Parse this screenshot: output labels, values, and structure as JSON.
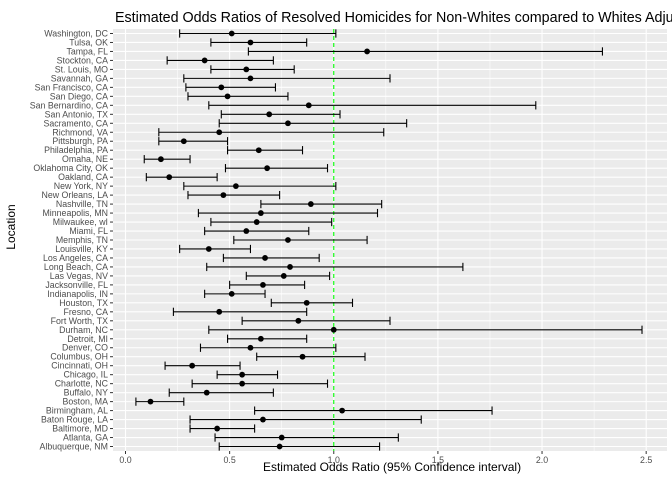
{
  "chart_data": {
    "type": "scatter",
    "title": "Estimated Odds Ratios of Resolved Homicides for Non-Whites compared to Whites Adjusted by Victim Age & Sex",
    "xlabel": "Estimated Odds Ratio (95% Confidence interval)",
    "ylabel": "Location",
    "xlim": [
      -0.06,
      2.6
    ],
    "xticks": [
      "0.0",
      "0.5",
      "1.0",
      "1.5",
      "2.0",
      "2.5"
    ],
    "reference_line": {
      "x": 1.0,
      "color": "#00ff00",
      "style": "dashed"
    },
    "grid": true,
    "legend": "none",
    "colors": {
      "panel": "#ebebeb",
      "grid": "#ffffff",
      "point": "#000000",
      "axis_text": "#4d4d4d"
    },
    "points": [
      {
        "location": "Washington, DC",
        "or": 0.51,
        "lo": 0.26,
        "hi": 1.01
      },
      {
        "location": "Tulsa, OK",
        "or": 0.6,
        "lo": 0.41,
        "hi": 0.87
      },
      {
        "location": "Tampa, FL",
        "or": 1.16,
        "lo": 0.59,
        "hi": 2.29
      },
      {
        "location": "Stockton, CA",
        "or": 0.38,
        "lo": 0.2,
        "hi": 0.71
      },
      {
        "location": "St. Louis, MO",
        "or": 0.58,
        "lo": 0.41,
        "hi": 0.81
      },
      {
        "location": "Savannah, GA",
        "or": 0.6,
        "lo": 0.28,
        "hi": 1.27
      },
      {
        "location": "San Francisco, CA",
        "or": 0.46,
        "lo": 0.29,
        "hi": 0.72
      },
      {
        "location": "San Diego, CA",
        "or": 0.49,
        "lo": 0.3,
        "hi": 0.78
      },
      {
        "location": "San Bernardino, CA",
        "or": 0.88,
        "lo": 0.4,
        "hi": 1.97
      },
      {
        "location": "San Antonio, TX",
        "or": 0.69,
        "lo": 0.46,
        "hi": 1.03
      },
      {
        "location": "Sacramento, CA",
        "or": 0.78,
        "lo": 0.45,
        "hi": 1.35
      },
      {
        "location": "Richmond, VA",
        "or": 0.45,
        "lo": 0.16,
        "hi": 1.24
      },
      {
        "location": "Pittsburgh, PA",
        "or": 0.28,
        "lo": 0.16,
        "hi": 0.49
      },
      {
        "location": "Philadelphia, PA",
        "or": 0.64,
        "lo": 0.49,
        "hi": 0.85
      },
      {
        "location": "Omaha, NE",
        "or": 0.17,
        "lo": 0.09,
        "hi": 0.31
      },
      {
        "location": "Oklahoma City, OK",
        "or": 0.68,
        "lo": 0.48,
        "hi": 0.97
      },
      {
        "location": "Oakland, CA",
        "or": 0.21,
        "lo": 0.1,
        "hi": 0.44
      },
      {
        "location": "New York, NY",
        "or": 0.53,
        "lo": 0.28,
        "hi": 1.01
      },
      {
        "location": "New Orleans, LA",
        "or": 0.47,
        "lo": 0.3,
        "hi": 0.74
      },
      {
        "location": "Nashville, TN",
        "or": 0.89,
        "lo": 0.65,
        "hi": 1.23
      },
      {
        "location": "Minneapolis, MN",
        "or": 0.65,
        "lo": 0.35,
        "hi": 1.21
      },
      {
        "location": "Milwaukee, wI",
        "or": 0.63,
        "lo": 0.41,
        "hi": 0.99
      },
      {
        "location": "Miami, FL",
        "or": 0.58,
        "lo": 0.38,
        "hi": 0.88
      },
      {
        "location": "Memphis, TN",
        "or": 0.78,
        "lo": 0.52,
        "hi": 1.16
      },
      {
        "location": "Louisville, KY",
        "or": 0.4,
        "lo": 0.26,
        "hi": 0.6
      },
      {
        "location": "Los Angeles, CA",
        "or": 0.67,
        "lo": 0.47,
        "hi": 0.93
      },
      {
        "location": "Long Beach, CA",
        "or": 0.79,
        "lo": 0.39,
        "hi": 1.62
      },
      {
        "location": "Las Vegas, NV",
        "or": 0.76,
        "lo": 0.58,
        "hi": 0.98
      },
      {
        "location": "Jacksonville, FL",
        "or": 0.66,
        "lo": 0.5,
        "hi": 0.86
      },
      {
        "location": "Indianapolis, IN",
        "or": 0.51,
        "lo": 0.38,
        "hi": 0.67
      },
      {
        "location": "Houston, TX",
        "or": 0.87,
        "lo": 0.7,
        "hi": 1.09
      },
      {
        "location": "Fresno, CA",
        "or": 0.45,
        "lo": 0.23,
        "hi": 0.87
      },
      {
        "location": "Fort Worth, TX",
        "or": 0.83,
        "lo": 0.56,
        "hi": 1.27
      },
      {
        "location": "Durham, NC",
        "or": 1.0,
        "lo": 0.4,
        "hi": 2.48
      },
      {
        "location": "Detroit, MI",
        "or": 0.65,
        "lo": 0.49,
        "hi": 0.87
      },
      {
        "location": "Denver, CO",
        "or": 0.6,
        "lo": 0.36,
        "hi": 1.01
      },
      {
        "location": "Columbus, OH",
        "or": 0.85,
        "lo": 0.63,
        "hi": 1.15
      },
      {
        "location": "Cincinnati, OH",
        "or": 0.32,
        "lo": 0.19,
        "hi": 0.55
      },
      {
        "location": "Chicago, IL",
        "or": 0.56,
        "lo": 0.44,
        "hi": 0.73
      },
      {
        "location": "Charlotte, NC",
        "or": 0.56,
        "lo": 0.32,
        "hi": 0.97
      },
      {
        "location": "Buffalo, NY",
        "or": 0.39,
        "lo": 0.21,
        "hi": 0.71
      },
      {
        "location": "Boston, MA",
        "or": 0.12,
        "lo": 0.05,
        "hi": 0.28
      },
      {
        "location": "Birmingham, AL",
        "or": 1.04,
        "lo": 0.62,
        "hi": 1.76
      },
      {
        "location": "Baton Rouge, LA",
        "or": 0.66,
        "lo": 0.31,
        "hi": 1.42
      },
      {
        "location": "Baltimore, MD",
        "or": 0.44,
        "lo": 0.31,
        "hi": 0.62
      },
      {
        "location": "Atlanta, GA",
        "or": 0.75,
        "lo": 0.43,
        "hi": 1.31
      },
      {
        "location": "Albuquerque, NM",
        "or": 0.74,
        "lo": 0.45,
        "hi": 1.22
      }
    ]
  }
}
